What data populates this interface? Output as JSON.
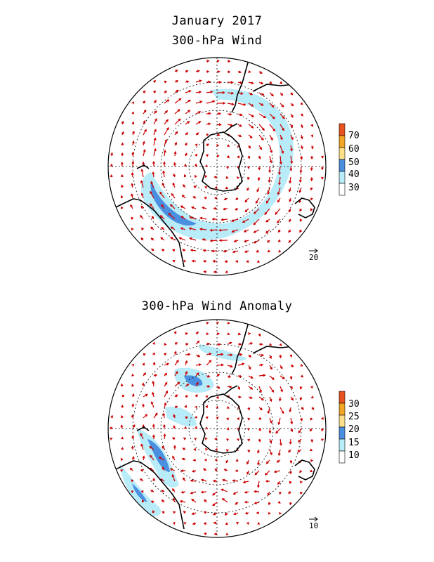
{
  "header": {
    "title": "January 2017",
    "panel1_title": "300-hPa Wind",
    "panel2_title": "300-hPa Wind Anomaly"
  },
  "panel1": {
    "colorbar": {
      "labels": [
        "30",
        "40",
        "50",
        "60",
        "70"
      ],
      "colors": [
        "#ffffff",
        "#b8ecf8",
        "#4a8fe0",
        "#fde08a",
        "#f3a526",
        "#e8521c"
      ]
    },
    "reference_vector": "20"
  },
  "panel2": {
    "colorbar": {
      "labels": [
        "10",
        "15",
        "20",
        "25",
        "30"
      ],
      "colors": [
        "#ffffff",
        "#b8ecf8",
        "#4a8fe0",
        "#fde08a",
        "#f3a526",
        "#e8521c"
      ]
    },
    "reference_vector": "10"
  },
  "style": {
    "arrow_color": "#cc0000",
    "coast_color": "#000000"
  }
}
